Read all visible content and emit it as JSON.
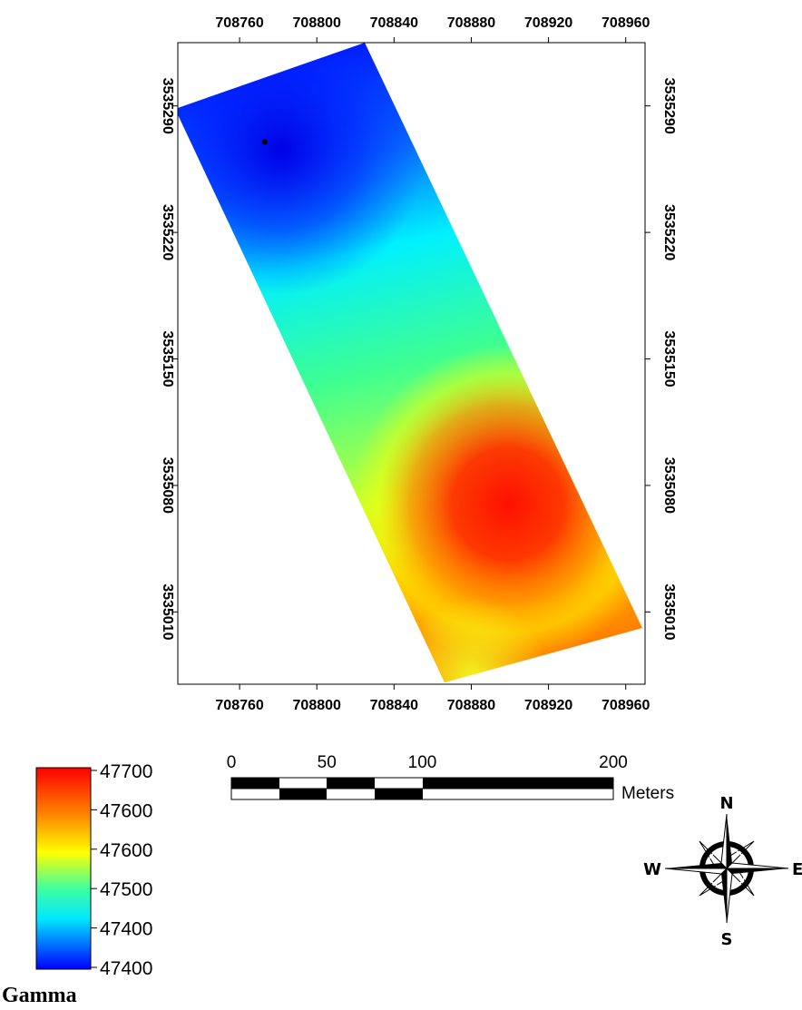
{
  "map": {
    "x_ticks": [
      "708760",
      "708800",
      "708840",
      "708880",
      "708920",
      "708960"
    ],
    "y_ticks": [
      "3535290",
      "3535220",
      "3535150",
      "3535080",
      "3535010"
    ],
    "x_range": [
      708728,
      708970
    ],
    "y_range": [
      3535325,
      3534970
    ],
    "point_marker": {
      "x": 708773,
      "y": 3535270
    },
    "surface_colors": [
      "#0000ff",
      "#00ffff",
      "#ffff00",
      "#ff0000"
    ]
  },
  "legend": {
    "title": "Gamma",
    "labels": [
      "47700",
      "47600",
      "47600",
      "47500",
      "47400",
      "47400"
    ],
    "gradient": [
      "#ff0000",
      "#ffff00",
      "#00ffff",
      "#0000ff"
    ]
  },
  "scalebar": {
    "labels": [
      "0",
      "50",
      "100",
      "200"
    ],
    "unit": "Meters"
  },
  "compass": {
    "n": "N",
    "s": "S",
    "e": "E",
    "w": "W"
  }
}
